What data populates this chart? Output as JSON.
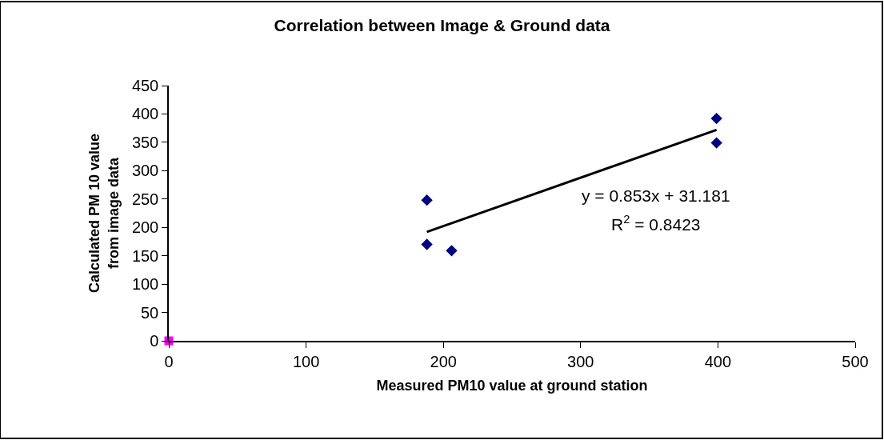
{
  "chart_data": {
    "type": "scatter",
    "title": "Correlation between Image & Ground data",
    "xlabel": "Measured PM10 value at ground station",
    "ylabel": "Calculated PM 10 value\nfrom image data",
    "series": [
      {
        "color": "#000080",
        "marker": "diamond",
        "x": [
          188,
          188,
          206,
          399,
          399
        ],
        "values": [
          248,
          170,
          159,
          392,
          349
        ]
      },
      {
        "color": "#ff00ff",
        "marker": "square",
        "x": [
          0
        ],
        "values": [
          0
        ]
      },
      {
        "type": "line",
        "color": "#000000",
        "marker": "none",
        "x": [
          188,
          399
        ],
        "values": [
          192,
          372
        ]
      }
    ],
    "xlim": [
      0,
      500
    ],
    "xticks": [
      0,
      100,
      200,
      300,
      400,
      500
    ],
    "ylim": [
      0,
      450
    ],
    "yticks": [
      0,
      50,
      100,
      150,
      200,
      250,
      300,
      350,
      400,
      450
    ],
    "grid": false,
    "annotations": [
      "y = 0.853x + 31.181",
      "R$^{2}$ = 0.8423"
    ]
  }
}
